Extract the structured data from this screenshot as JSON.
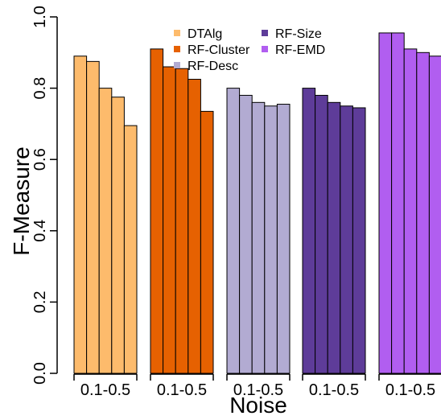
{
  "chart_data": {
    "type": "bar",
    "xlabel": "Noise",
    "ylabel": "F-Measure",
    "ylim": [
      0.0,
      1.0
    ],
    "yticks": [
      "0.0",
      "0.2",
      "0.4",
      "0.6",
      "0.8",
      "1.0"
    ],
    "grid": false,
    "legend_position": "top-center",
    "groups": [
      {
        "name": "DTAlg",
        "color": "#fdbb6c",
        "label": "0.1-0.5",
        "values": [
          0.89,
          0.875,
          0.8,
          0.775,
          0.695
        ]
      },
      {
        "name": "RF-Cluster",
        "color": "#e66101",
        "label": "0.1-0.5",
        "values": [
          0.91,
          0.86,
          0.855,
          0.825,
          0.735
        ]
      },
      {
        "name": "RF-Desc",
        "color": "#b2abd2",
        "label": "0.1-0.5",
        "values": [
          0.8,
          0.78,
          0.76,
          0.75,
          0.755
        ]
      },
      {
        "name": "RF-Size",
        "color": "#5e3c99",
        "label": "0.1-0.5",
        "values": [
          0.8,
          0.78,
          0.76,
          0.75,
          0.745
        ]
      },
      {
        "name": "RF-EMD",
        "color": "#b15ef0",
        "label": "0.1-0.5",
        "values": [
          0.955,
          0.955,
          0.91,
          0.9,
          0.89
        ]
      }
    ]
  }
}
